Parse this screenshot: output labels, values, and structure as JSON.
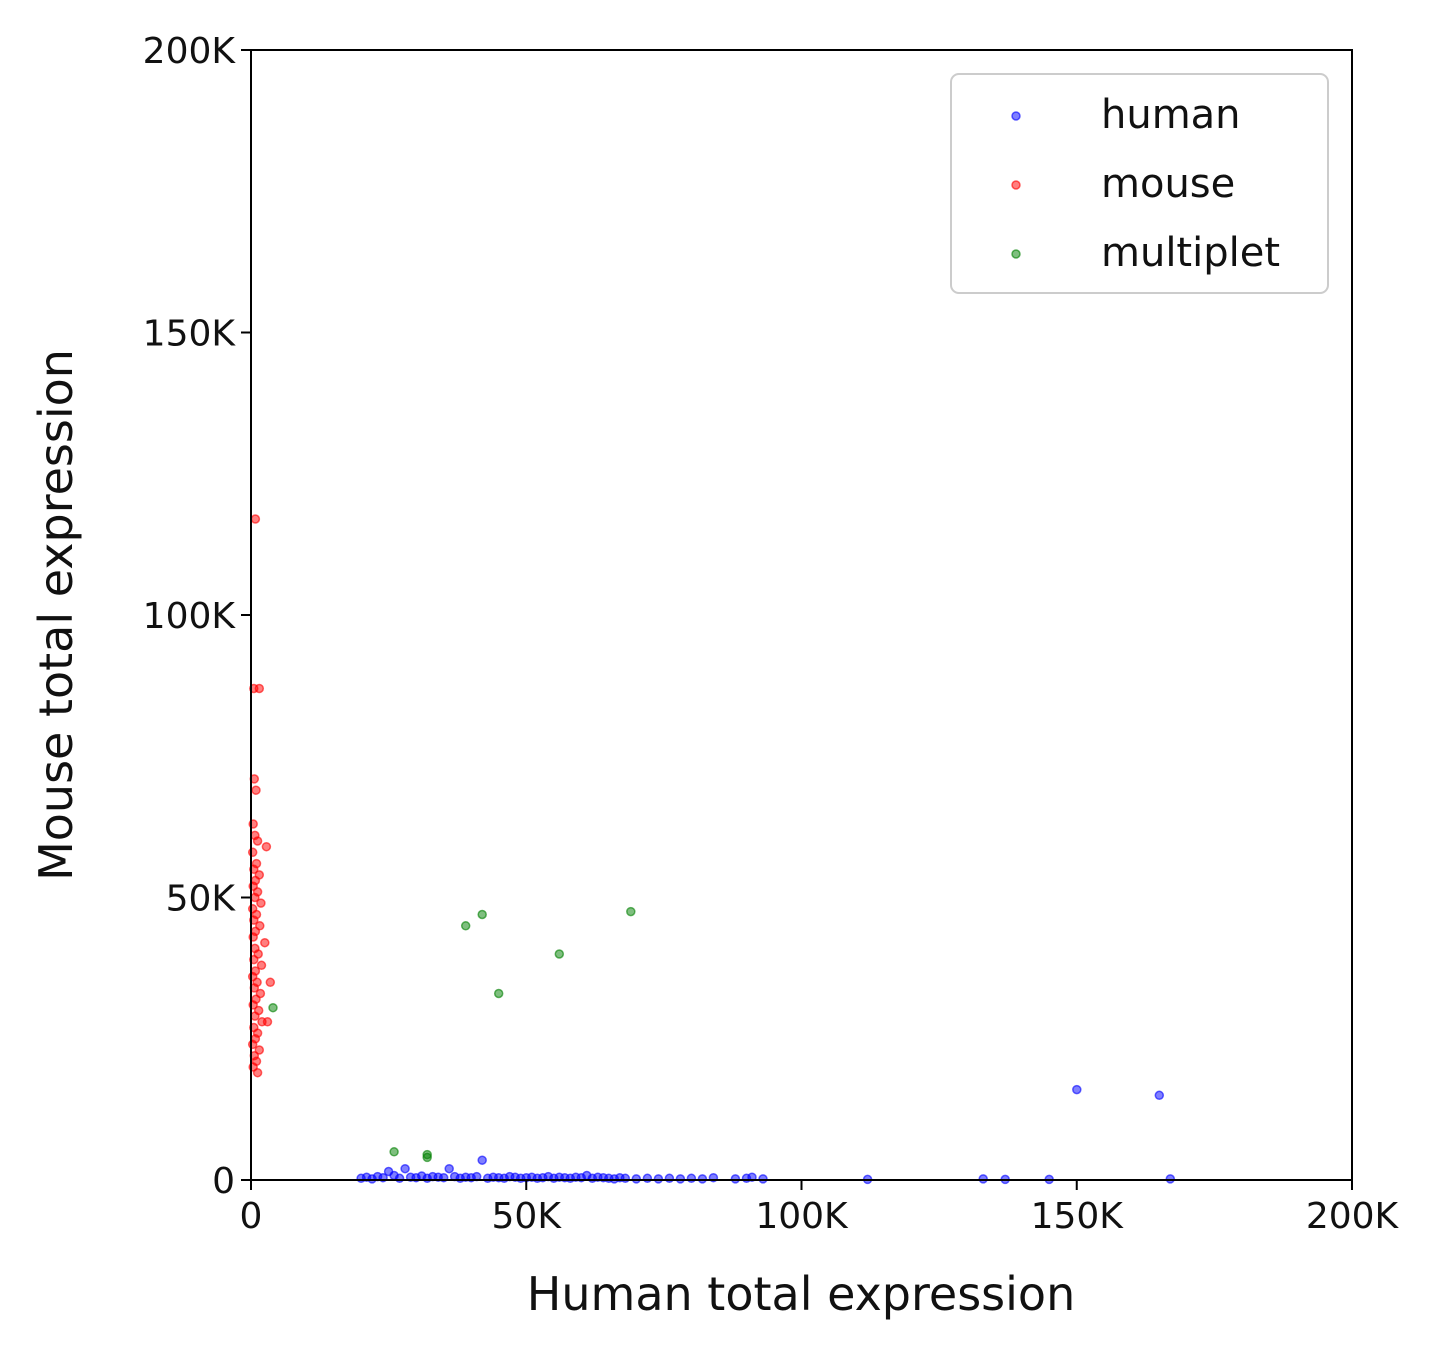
{
  "chart_data": {
    "type": "scatter",
    "xlabel": "Human total expression",
    "ylabel": "Mouse total expression",
    "xlim": [
      0,
      200000
    ],
    "ylim": [
      0,
      200000
    ],
    "x_ticks": [
      0,
      50000,
      100000,
      150000,
      200000
    ],
    "x_tick_labels": [
      "0",
      "50K",
      "100K",
      "150K",
      "200K"
    ],
    "y_ticks": [
      0,
      50000,
      100000,
      150000,
      200000
    ],
    "y_tick_labels": [
      "0",
      "50K",
      "100K",
      "150K",
      "200K"
    ],
    "grid": false,
    "legend_position": "top-right",
    "series": [
      {
        "name": "human",
        "color": "#0000ff",
        "points": [
          [
            20000,
            300
          ],
          [
            21000,
            500
          ],
          [
            22000,
            200
          ],
          [
            23000,
            600
          ],
          [
            24000,
            400
          ],
          [
            25000,
            1500
          ],
          [
            26000,
            800
          ],
          [
            27000,
            300
          ],
          [
            28000,
            2000
          ],
          [
            29000,
            500
          ],
          [
            30000,
            400
          ],
          [
            31000,
            700
          ],
          [
            32000,
            300
          ],
          [
            33000,
            600
          ],
          [
            34000,
            500
          ],
          [
            35000,
            400
          ],
          [
            36000,
            2000
          ],
          [
            37000,
            600
          ],
          [
            38000,
            300
          ],
          [
            39000,
            500
          ],
          [
            40000,
            400
          ],
          [
            41000,
            600
          ],
          [
            42000,
            3500
          ],
          [
            43000,
            300
          ],
          [
            44000,
            500
          ],
          [
            45000,
            400
          ],
          [
            46000,
            300
          ],
          [
            47000,
            600
          ],
          [
            48000,
            500
          ],
          [
            49000,
            300
          ],
          [
            50000,
            400
          ],
          [
            51000,
            500
          ],
          [
            52000,
            300
          ],
          [
            53000,
            400
          ],
          [
            54000,
            600
          ],
          [
            55000,
            300
          ],
          [
            56000,
            500
          ],
          [
            57000,
            400
          ],
          [
            58000,
            300
          ],
          [
            59000,
            500
          ],
          [
            60000,
            400
          ],
          [
            61000,
            800
          ],
          [
            62000,
            300
          ],
          [
            63000,
            500
          ],
          [
            64000,
            400
          ],
          [
            65000,
            300
          ],
          [
            66000,
            200
          ],
          [
            67000,
            400
          ],
          [
            68000,
            300
          ],
          [
            70000,
            200
          ],
          [
            72000,
            300
          ],
          [
            74000,
            200
          ],
          [
            76000,
            300
          ],
          [
            78000,
            200
          ],
          [
            80000,
            300
          ],
          [
            82000,
            200
          ],
          [
            84000,
            400
          ],
          [
            88000,
            200
          ],
          [
            90000,
            300
          ],
          [
            91000,
            500
          ],
          [
            93000,
            200
          ],
          [
            112000,
            100
          ],
          [
            133000,
            200
          ],
          [
            137000,
            100
          ],
          [
            145000,
            100
          ],
          [
            150000,
            16000
          ],
          [
            165000,
            15000
          ],
          [
            167000,
            200
          ]
        ]
      },
      {
        "name": "mouse",
        "color": "#ff0000",
        "points": [
          [
            800,
            117000
          ],
          [
            500,
            87000
          ],
          [
            1500,
            87000
          ],
          [
            600,
            71000
          ],
          [
            900,
            69000
          ],
          [
            400,
            63000
          ],
          [
            700,
            61000
          ],
          [
            1200,
            60000
          ],
          [
            2800,
            59000
          ],
          [
            300,
            58000
          ],
          [
            1000,
            56000
          ],
          [
            500,
            55000
          ],
          [
            1500,
            54000
          ],
          [
            800,
            53000
          ],
          [
            400,
            52000
          ],
          [
            1200,
            51000
          ],
          [
            700,
            50000
          ],
          [
            1800,
            49000
          ],
          [
            300,
            48000
          ],
          [
            1000,
            47000
          ],
          [
            500,
            46000
          ],
          [
            1600,
            45000
          ],
          [
            800,
            44000
          ],
          [
            400,
            43000
          ],
          [
            2500,
            42000
          ],
          [
            700,
            41000
          ],
          [
            1300,
            40000
          ],
          [
            500,
            39000
          ],
          [
            1900,
            38000
          ],
          [
            800,
            37000
          ],
          [
            300,
            36000
          ],
          [
            1100,
            35000
          ],
          [
            3500,
            35000
          ],
          [
            600,
            34000
          ],
          [
            1700,
            33000
          ],
          [
            900,
            32000
          ],
          [
            400,
            31000
          ],
          [
            1400,
            30000
          ],
          [
            700,
            29000
          ],
          [
            2000,
            28000
          ],
          [
            3000,
            28000
          ],
          [
            500,
            27000
          ],
          [
            1200,
            26000
          ],
          [
            800,
            25000
          ],
          [
            300,
            24000
          ],
          [
            1500,
            23000
          ],
          [
            600,
            22000
          ],
          [
            1000,
            21000
          ],
          [
            400,
            20000
          ],
          [
            1200,
            19000
          ]
        ]
      },
      {
        "name": "multiplet",
        "color": "#008000",
        "points": [
          [
            39000,
            45000
          ],
          [
            42000,
            47000
          ],
          [
            69000,
            47500
          ],
          [
            56000,
            40000
          ],
          [
            45000,
            33000
          ],
          [
            4000,
            30500
          ],
          [
            26000,
            5000
          ],
          [
            32000,
            4500
          ],
          [
            32000,
            4000
          ]
        ]
      }
    ]
  }
}
